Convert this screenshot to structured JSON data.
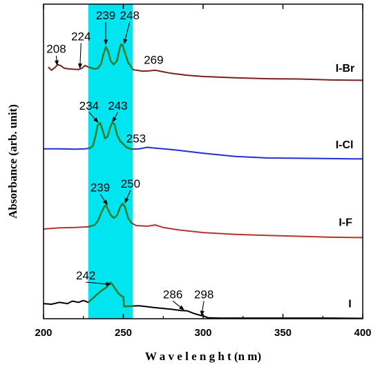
{
  "chart_data": {
    "type": "line",
    "title": "",
    "xlabel": "W a v e l e n g h t  (n m)",
    "ylabel": "Absorbance (arb. unit)",
    "xlim": [
      200,
      400
    ],
    "ylim": [
      0,
      100
    ],
    "xticks": [
      "200",
      "250",
      "300",
      "350",
      "400"
    ],
    "grid": false,
    "highlight_band": {
      "x": [
        228,
        256
      ],
      "color": "#00e5f0"
    },
    "series_color_highlight": "#2e7d32",
    "series": [
      {
        "name": "I-Br",
        "color": "#7a1f1f",
        "points": [
          [
            203,
            80
          ],
          [
            205,
            79
          ],
          [
            207,
            79.8
          ],
          [
            209,
            80.8
          ],
          [
            211,
            80.4
          ],
          [
            213,
            79.6
          ],
          [
            216,
            79.4
          ],
          [
            219,
            79.3
          ],
          [
            222,
            79.2
          ],
          [
            224,
            79.6
          ],
          [
            226,
            80.5
          ],
          [
            228,
            80
          ],
          [
            232,
            79.4
          ],
          [
            234,
            79.6
          ],
          [
            236,
            81
          ],
          [
            237.5,
            84
          ],
          [
            239,
            86.4
          ],
          [
            240.5,
            85
          ],
          [
            242,
            82
          ],
          [
            244,
            80.8
          ],
          [
            246,
            82
          ],
          [
            247.5,
            85.5
          ],
          [
            248.5,
            87.2
          ],
          [
            249.5,
            87
          ],
          [
            251,
            84.5
          ],
          [
            253,
            81.5
          ],
          [
            255,
            80
          ],
          [
            256,
            79.2
          ],
          [
            258,
            79
          ],
          [
            262,
            78.7
          ],
          [
            266,
            78.8
          ],
          [
            270,
            79
          ],
          [
            274,
            78.6
          ],
          [
            280,
            78
          ],
          [
            290,
            77.4
          ],
          [
            300,
            77
          ],
          [
            320,
            76.6
          ],
          [
            340,
            76.3
          ],
          [
            360,
            76.2
          ],
          [
            380,
            75.9
          ],
          [
            400,
            75.8
          ]
        ]
      },
      {
        "name": "I-Cl",
        "color": "#1f2fd6",
        "points": [
          [
            200,
            54
          ],
          [
            210,
            54
          ],
          [
            220,
            53.9
          ],
          [
            226,
            54
          ],
          [
            229,
            54.2
          ],
          [
            231,
            55
          ],
          [
            232.5,
            58
          ],
          [
            234,
            61.6
          ],
          [
            235.5,
            62.2
          ],
          [
            237,
            60
          ],
          [
            238.5,
            57.3
          ],
          [
            240,
            57.8
          ],
          [
            241.5,
            60.5
          ],
          [
            243,
            62.3
          ],
          [
            244.5,
            61.8
          ],
          [
            246,
            58.5
          ],
          [
            248,
            56.5
          ],
          [
            250,
            55.5
          ],
          [
            252,
            54.5
          ],
          [
            255,
            53.9
          ],
          [
            260,
            54
          ],
          [
            265,
            54.5
          ],
          [
            270,
            54.2
          ],
          [
            280,
            53.8
          ],
          [
            300,
            52.6
          ],
          [
            320,
            51.6
          ],
          [
            340,
            51.1
          ],
          [
            360,
            51
          ],
          [
            380,
            50.9
          ],
          [
            400,
            50.8
          ]
        ]
      },
      {
        "name": "I-F",
        "color": "#b5332a",
        "points": [
          [
            200,
            28.5
          ],
          [
            210,
            28.9
          ],
          [
            220,
            29
          ],
          [
            228,
            29.2
          ],
          [
            232,
            29.8
          ],
          [
            234,
            31
          ],
          [
            236,
            33.5
          ],
          [
            238,
            35.6
          ],
          [
            239,
            36
          ],
          [
            240,
            35.2
          ],
          [
            242,
            33
          ],
          [
            244,
            32
          ],
          [
            246,
            32.8
          ],
          [
            248,
            35.5
          ],
          [
            249.5,
            36.6
          ],
          [
            251,
            35.6
          ],
          [
            253,
            32
          ],
          [
            255,
            30.5
          ],
          [
            258,
            29.6
          ],
          [
            265,
            29.4
          ],
          [
            270,
            29.8
          ],
          [
            275,
            29
          ],
          [
            285,
            28.2
          ],
          [
            300,
            27.4
          ],
          [
            320,
            26.8
          ],
          [
            340,
            26.5
          ],
          [
            360,
            26.2
          ],
          [
            380,
            25.9
          ],
          [
            400,
            25.8
          ]
        ]
      },
      {
        "name": "I",
        "color": "#000000",
        "points": [
          [
            200,
            4.8
          ],
          [
            205,
            4.6
          ],
          [
            210,
            5.2
          ],
          [
            215,
            4.8
          ],
          [
            218,
            5.6
          ],
          [
            222,
            5.2
          ],
          [
            225,
            5.8
          ],
          [
            228,
            5.2
          ],
          [
            231,
            6.5
          ],
          [
            233,
            7.5
          ],
          [
            236,
            8.8
          ],
          [
            238,
            9.5
          ],
          [
            240,
            10.2
          ],
          [
            241,
            11.3
          ],
          [
            242,
            11.5
          ],
          [
            243,
            11
          ],
          [
            245,
            9.5
          ],
          [
            247,
            8
          ],
          [
            249,
            7.2
          ],
          [
            250,
            7
          ],
          [
            250.5,
            3.9
          ],
          [
            254,
            4
          ],
          [
            260,
            4.1
          ],
          [
            270,
            3.5
          ],
          [
            280,
            3
          ],
          [
            286,
            2.6
          ],
          [
            290,
            2.5
          ],
          [
            294,
            1.7
          ],
          [
            298,
            1.1
          ],
          [
            300,
            0.9
          ],
          [
            303,
            0.3
          ],
          [
            310,
            0.2
          ],
          [
            330,
            0.2
          ],
          [
            350,
            0.2
          ],
          [
            380,
            0.2
          ],
          [
            400,
            0.1
          ]
        ]
      }
    ],
    "annotations": [
      {
        "text": "208",
        "x": 208,
        "y": 84.5,
        "arrow_to": [
          208.5,
          80.6
        ]
      },
      {
        "text": "224",
        "x": 223.5,
        "y": 88.5,
        "arrow_to": [
          222.8,
          79.6
        ]
      },
      {
        "text": "239",
        "x": 239,
        "y": 95.2,
        "arrow_to": [
          239,
          87.2
        ]
      },
      {
        "text": "248",
        "x": 254,
        "y": 95.2,
        "arrow_to": [
          250.5,
          87.4
        ]
      },
      {
        "text": "269",
        "x": 269,
        "y": 81
      },
      {
        "text": "234",
        "x": 228.5,
        "y": 66.5,
        "arrow_to": [
          234.2,
          62.4
        ]
      },
      {
        "text": "243",
        "x": 246.5,
        "y": 66.5,
        "arrow_to": [
          243.2,
          62.5
        ]
      },
      {
        "text": "253",
        "x": 258,
        "y": 56
      },
      {
        "text": "239",
        "x": 235.5,
        "y": 40.5,
        "arrow_to": [
          240,
          36.2
        ]
      },
      {
        "text": "250",
        "x": 254.5,
        "y": 41.7,
        "arrow_to": [
          251,
          36.8
        ]
      },
      {
        "text": "242",
        "x": 226.5,
        "y": 12.5,
        "arrow_to": [
          242,
          10.9
        ]
      },
      {
        "text": "286",
        "x": 281,
        "y": 6.5,
        "arrow_to": [
          288,
          2.8
        ]
      },
      {
        "text": "298",
        "x": 300.5,
        "y": 6.5,
        "arrow_to": [
          299,
          1
        ]
      }
    ],
    "series_labels": [
      {
        "name": "I-Br",
        "x": 383,
        "y": 78.5
      },
      {
        "name": "I-Cl",
        "x": 383,
        "y": 54.2
      },
      {
        "name": "I-F",
        "x": 385,
        "y": 29.5
      },
      {
        "name": "I",
        "x": 391,
        "y": 3.6
      }
    ]
  }
}
